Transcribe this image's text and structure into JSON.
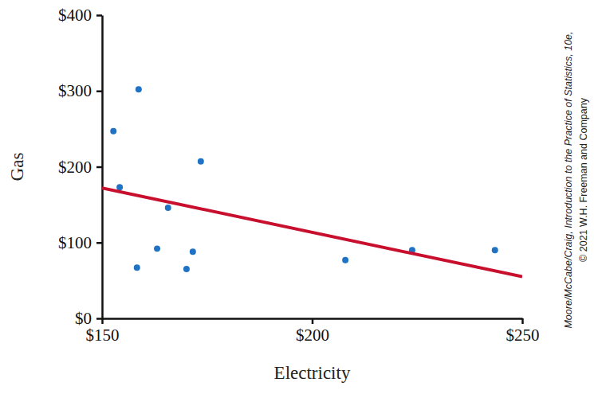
{
  "chart_data": {
    "type": "scatter",
    "x_label": "Electricity",
    "y_label": "Gas",
    "xlim": [
      150,
      250
    ],
    "ylim": [
      0,
      400
    ],
    "xticks": [
      {
        "value": 150,
        "label": "$150"
      },
      {
        "value": 200,
        "label": "$200"
      },
      {
        "value": 250,
        "label": "$250"
      }
    ],
    "yticks": [
      {
        "value": 0,
        "label": "$0"
      },
      {
        "value": 100,
        "label": "$100"
      },
      {
        "value": 200,
        "label": "$200"
      },
      {
        "value": 300,
        "label": "$300"
      },
      {
        "value": 400,
        "label": "$400"
      }
    ],
    "series": [
      {
        "type": "scatter",
        "marker": "circle",
        "color": "#1f72c4",
        "x": [
          152.7,
          158.7,
          154.2,
          173.5,
          165.7,
          163.1,
          158.3,
          171.6,
          170.1,
          207.9,
          223.8,
          243.5
        ],
        "values": [
          247,
          302,
          173,
          207,
          146,
          92,
          67,
          88,
          65,
          77,
          90,
          90
        ]
      },
      {
        "type": "line",
        "line_style": "solid",
        "color": "#c8102e",
        "x": [
          150,
          250
        ],
        "values": [
          172,
          55
        ]
      }
    ],
    "annotations": [
      "Moore/McCabe/Craig, Introduction to the Practice of Statistics, 10e,",
      "© 2021 W.H. Freeman and Company"
    ]
  }
}
